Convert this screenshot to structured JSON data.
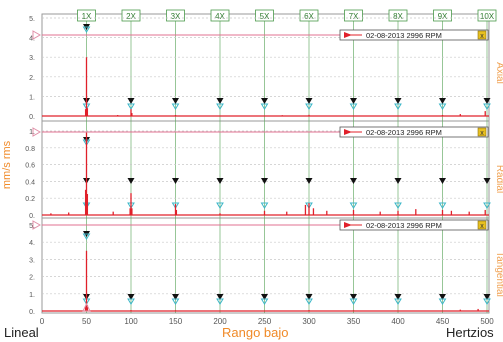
{
  "colors": {
    "signal": "#e0202a",
    "harmonic_line": "#5ea85e",
    "marker_fill": "#111111",
    "marker_cyan": "#3cb7c8",
    "side_label": "#f0a050",
    "ylabel": "#f08a28",
    "xlabel": "#f08a28",
    "grid": "#c8c8c8",
    "axis_text": "#555555",
    "legend_square": "#e8c020",
    "ref_triangle": "#e090a8"
  },
  "footer": {
    "left": "Lineal",
    "center": "Rango bajo",
    "right": "Hertzios"
  },
  "chart_data": {
    "type": "line",
    "x_axis": {
      "range": [
        0,
        500
      ],
      "ticks": [
        0,
        50,
        100,
        150,
        200,
        250,
        300,
        350,
        400,
        450,
        500
      ],
      "label": "Rango bajo"
    },
    "y_label": "mm/s rms",
    "harmonics": {
      "labels": [
        "1X",
        "2X",
        "3X",
        "4X",
        "5X",
        "6X",
        "7X",
        "8X",
        "9X",
        "10X"
      ],
      "frequencies": [
        50,
        100,
        150,
        200,
        250,
        300,
        350,
        400,
        450,
        500
      ]
    },
    "legend_text": "02-08-2013 2996 RPM",
    "panels": [
      {
        "name": "Axial",
        "ylim": [
          0,
          5
        ],
        "yticks": [
          0,
          1,
          2,
          3,
          4,
          5
        ],
        "ytick_labels": [
          "0.",
          "1.",
          "2.",
          "3.",
          "4.",
          "5."
        ],
        "peaks": [
          {
            "x": 49,
            "y": 0.35
          },
          {
            "x": 50,
            "y": 3.0
          },
          {
            "x": 51,
            "y": 0.4
          },
          {
            "x": 85,
            "y": 0.05
          },
          {
            "x": 100,
            "y": 0.35
          },
          {
            "x": 101,
            "y": 0.15
          },
          {
            "x": 150,
            "y": 0.05
          },
          {
            "x": 270,
            "y": 0.04
          },
          {
            "x": 300,
            "y": 0.06
          },
          {
            "x": 450,
            "y": 0.05
          },
          {
            "x": 470,
            "y": 0.1
          },
          {
            "x": 498,
            "y": 0.25
          }
        ]
      },
      {
        "name": "Radial",
        "ylim": [
          0,
          1
        ],
        "yticks": [
          0,
          0.2,
          0.4,
          0.6,
          0.8,
          1.0
        ],
        "ytick_labels": [
          "0.",
          "0.2",
          "0.4",
          "0.6",
          "0.8",
          "1."
        ],
        "peaks": [
          {
            "x": 10,
            "y": 0.02
          },
          {
            "x": 30,
            "y": 0.03
          },
          {
            "x": 49,
            "y": 0.3
          },
          {
            "x": 50,
            "y": 0.98
          },
          {
            "x": 51,
            "y": 0.25
          },
          {
            "x": 80,
            "y": 0.04
          },
          {
            "x": 99,
            "y": 0.08
          },
          {
            "x": 100,
            "y": 0.26
          },
          {
            "x": 101,
            "y": 0.08
          },
          {
            "x": 150,
            "y": 0.13
          },
          {
            "x": 151,
            "y": 0.06
          },
          {
            "x": 200,
            "y": 0.02
          },
          {
            "x": 250,
            "y": 0.05
          },
          {
            "x": 275,
            "y": 0.04
          },
          {
            "x": 296,
            "y": 0.12
          },
          {
            "x": 300,
            "y": 0.14
          },
          {
            "x": 305,
            "y": 0.08
          },
          {
            "x": 320,
            "y": 0.05
          },
          {
            "x": 350,
            "y": 0.06
          },
          {
            "x": 380,
            "y": 0.04
          },
          {
            "x": 400,
            "y": 0.05
          },
          {
            "x": 420,
            "y": 0.07
          },
          {
            "x": 450,
            "y": 0.06
          },
          {
            "x": 460,
            "y": 0.05
          },
          {
            "x": 480,
            "y": 0.04
          },
          {
            "x": 498,
            "y": 0.06
          }
        ]
      },
      {
        "name": "Tangential",
        "ylim": [
          0,
          5
        ],
        "yticks": [
          0,
          1,
          2,
          3,
          4,
          5
        ],
        "ytick_labels": [
          "0.",
          "1.",
          "2.",
          "3.",
          "4.",
          "5."
        ],
        "peaks": [
          {
            "x": 49,
            "y": 0.3
          },
          {
            "x": 50,
            "y": 3.5
          },
          {
            "x": 51,
            "y": 0.35
          },
          {
            "x": 100,
            "y": 0.05
          },
          {
            "x": 150,
            "y": 0.04
          },
          {
            "x": 300,
            "y": 0.05
          },
          {
            "x": 350,
            "y": 0.04
          },
          {
            "x": 470,
            "y": 0.08
          },
          {
            "x": 490,
            "y": 0.12
          }
        ]
      }
    ]
  }
}
